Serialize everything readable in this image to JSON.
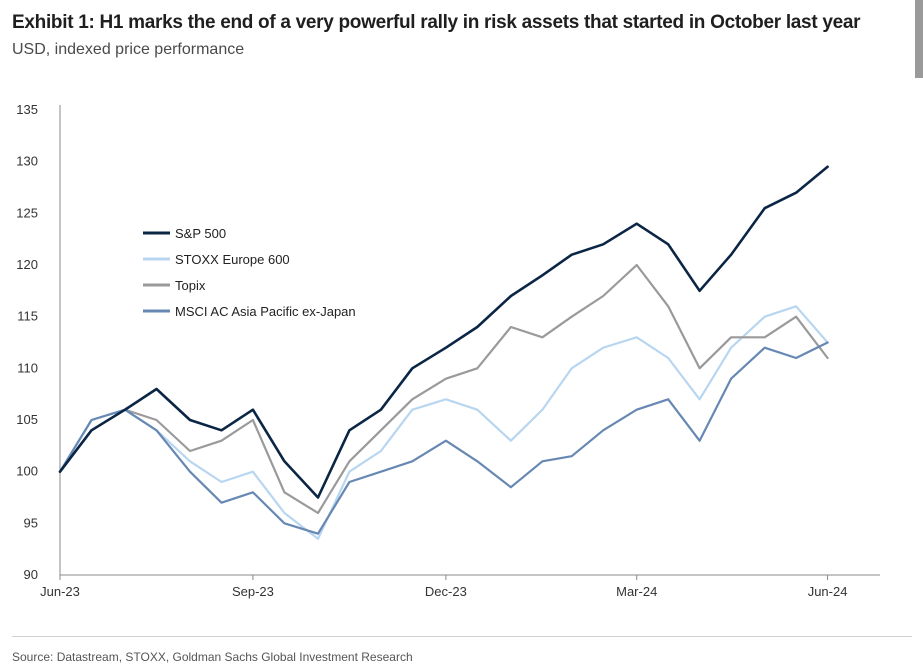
{
  "header": {
    "title": "Exhibit 1: H1 marks the end of a very powerful rally in risk assets that started in October last year",
    "subtitle": "USD, indexed price performance"
  },
  "footer": {
    "source": "Source: Datastream, STOXX, Goldman Sachs Global Investment Research"
  },
  "chart_data": {
    "type": "line",
    "title": "Exhibit 1: H1 marks the end of a very powerful rally in risk assets that started in October last year",
    "subtitle": "USD, indexed price performance",
    "xlabel": "",
    "ylabel": "",
    "ylim": [
      90,
      135
    ],
    "yticks": [
      90,
      95,
      100,
      105,
      110,
      115,
      120,
      125,
      130,
      135
    ],
    "xticks": [
      "Jun-23",
      "Sep-23",
      "Dec-23",
      "Mar-24",
      "Jun-24"
    ],
    "grid": false,
    "legend_position": "upper-left",
    "x": [
      "2023-06-30",
      "2023-07-15",
      "2023-07-31",
      "2023-08-15",
      "2023-08-31",
      "2023-09-15",
      "2023-09-30",
      "2023-10-15",
      "2023-10-31",
      "2023-11-15",
      "2023-11-30",
      "2023-12-15",
      "2023-12-31",
      "2024-01-15",
      "2024-01-31",
      "2024-02-15",
      "2024-02-29",
      "2024-03-15",
      "2024-03-31",
      "2024-04-15",
      "2024-04-30",
      "2024-05-15",
      "2024-05-31",
      "2024-06-15",
      "2024-06-30"
    ],
    "series": [
      {
        "name": "S&P 500",
        "color": "#0b2545",
        "values": [
          100,
          104,
          106,
          108,
          105,
          104,
          106,
          101,
          97.5,
          104,
          106,
          110,
          112,
          114,
          117,
          119,
          121,
          122,
          124,
          122,
          117.5,
          121,
          125.5,
          127,
          129.5
        ]
      },
      {
        "name": "STOXX Europe 600",
        "color": "#b8d6f0",
        "values": [
          100,
          105,
          106,
          104,
          101,
          99,
          100,
          96,
          93.5,
          100,
          102,
          106,
          107,
          106,
          103,
          106,
          110,
          112,
          113,
          111,
          107,
          112,
          115,
          116,
          112.5
        ]
      },
      {
        "name": "Topix",
        "color": "#9a9a9a",
        "values": [
          100,
          104,
          106,
          105,
          102,
          103,
          105,
          98,
          96,
          101,
          104,
          107,
          109,
          110,
          114,
          113,
          115,
          117,
          120,
          116,
          110,
          113,
          113,
          115,
          111
        ]
      },
      {
        "name": "MSCI AC Asia Pacific ex-Japan",
        "color": "#6688b3",
        "values": [
          100,
          105,
          106,
          104,
          100,
          97,
          98,
          95,
          94,
          99,
          100,
          101,
          103,
          101,
          98.5,
          101,
          101.5,
          104,
          106,
          107,
          103,
          109,
          112,
          111,
          112.5
        ]
      }
    ]
  }
}
